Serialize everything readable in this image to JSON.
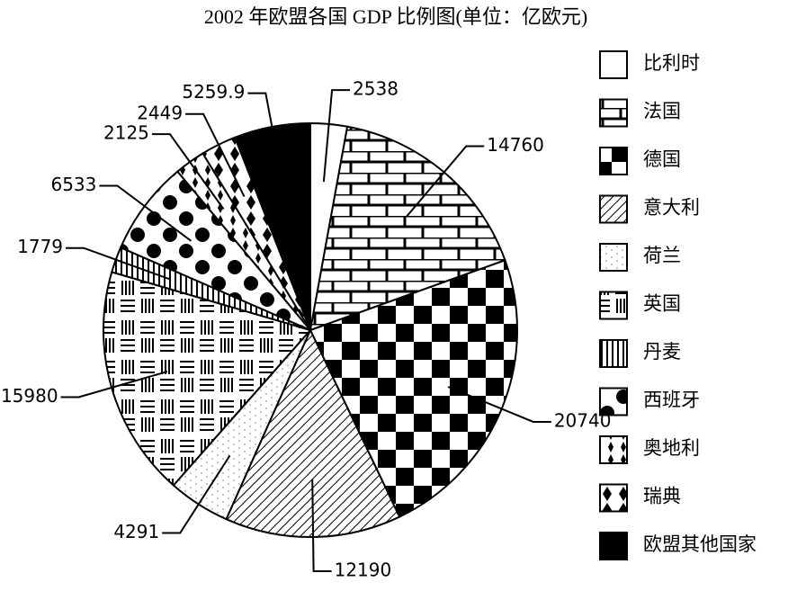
{
  "chart_data": {
    "type": "pie",
    "title": "2002 年欧盟各国 GDP 比例图(单位：亿欧元)",
    "categories": [
      "比利时",
      "法国",
      "德国",
      "意大利",
      "荷兰",
      "英国",
      "丹麦",
      "西班牙",
      "奥地利",
      "瑞典",
      "欧盟其他国家"
    ],
    "values": [
      2538,
      14760,
      20740,
      12190,
      4291,
      15980,
      1779,
      6533,
      2125,
      2449,
      5259.9
    ]
  }
}
